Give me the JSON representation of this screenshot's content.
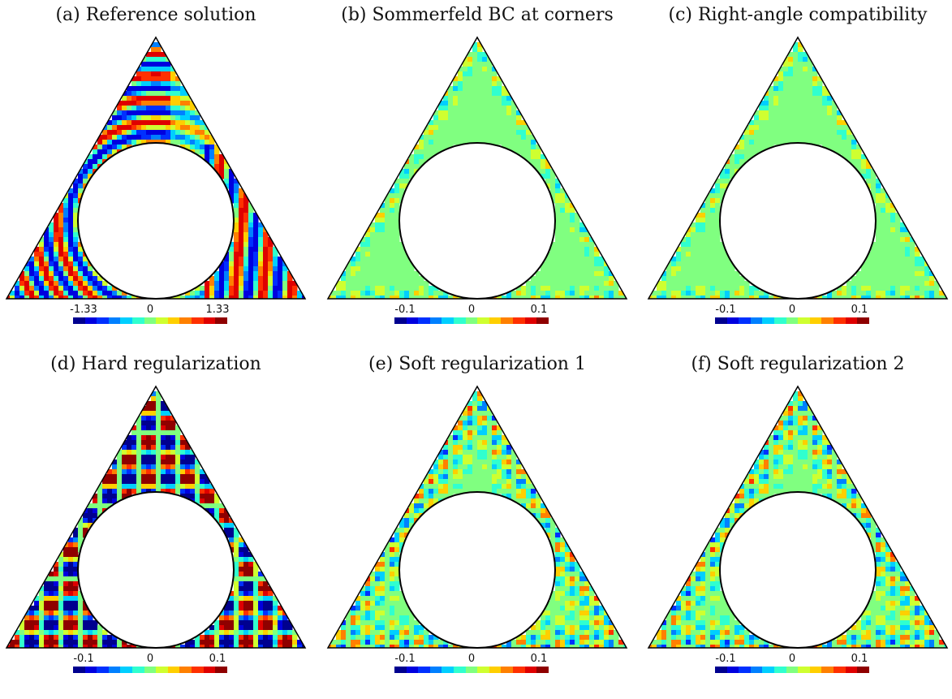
{
  "figure": {
    "panels": [
      {
        "id": "a",
        "caption": "(a) Reference solution",
        "colorbar": {
          "min_label": "-1.33",
          "mid_label": "0",
          "max_label": "1.33"
        },
        "field_style": "reference"
      },
      {
        "id": "b",
        "caption": "(b) Sommerfeld BC at corners",
        "colorbar": {
          "min_label": "-0.1",
          "mid_label": "0",
          "max_label": "0.1"
        },
        "field_style": "small-error"
      },
      {
        "id": "c",
        "caption": "(c) Right-angle compatibility",
        "colorbar": {
          "min_label": "-0.1",
          "mid_label": "0",
          "max_label": "0.1"
        },
        "field_style": "small-error"
      },
      {
        "id": "d",
        "caption": "(d) Hard regularization",
        "colorbar": {
          "min_label": "-0.1",
          "mid_label": "0",
          "max_label": "0.1"
        },
        "field_style": "large-error"
      },
      {
        "id": "e",
        "caption": "(e) Soft regularization 1",
        "colorbar": {
          "min_label": "-0.1",
          "mid_label": "0",
          "max_label": "0.1"
        },
        "field_style": "medium-error"
      },
      {
        "id": "f",
        "caption": "(f) Soft regularization 2",
        "colorbar": {
          "min_label": "-0.1",
          "mid_label": "0",
          "max_label": "0.1"
        },
        "field_style": "medium-error"
      }
    ],
    "colormap": [
      "#00008f",
      "#0000df",
      "#0030ff",
      "#0080ff",
      "#00cfff",
      "#30ffcf",
      "#80ff80",
      "#cfff30",
      "#ffcf00",
      "#ff8000",
      "#ff3000",
      "#df0000",
      "#8f0000"
    ]
  }
}
